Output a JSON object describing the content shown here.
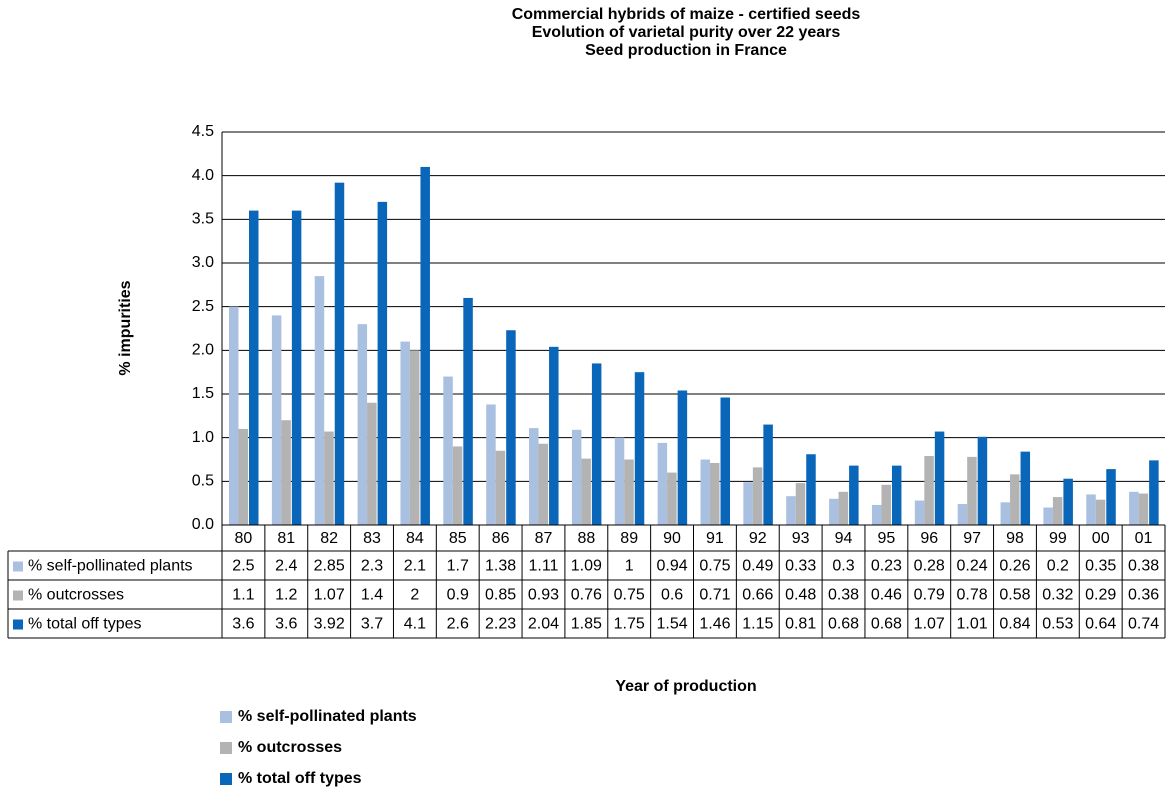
{
  "chart_data": {
    "type": "bar",
    "title": "Commercial hybrids of maize -  certified seeds",
    "subtitle": [
      "Evolution of varietal purity over 22 years",
      "Seed production in France"
    ],
    "y_label": "% impurities",
    "x_label": "Year of production",
    "categories": [
      "80",
      "81",
      "82",
      "83",
      "84",
      "85",
      "86",
      "87",
      "88",
      "89",
      "90",
      "91",
      "92",
      "93",
      "94",
      "95",
      "96",
      "97",
      "98",
      "99",
      "00",
      "01"
    ],
    "series": [
      {
        "name": "% self-pollinated plants",
        "color": "#a9c0e0",
        "values": [
          2.5,
          2.4,
          2.85,
          2.3,
          2.1,
          1.7,
          1.38,
          1.11,
          1.09,
          1,
          0.94,
          0.75,
          0.49,
          0.33,
          0.3,
          0.23,
          0.28,
          0.24,
          0.26,
          0.2,
          0.35,
          0.38
        ]
      },
      {
        "name": "% outcrosses",
        "color": "#b3b3b3",
        "values": [
          1.1,
          1.2,
          1.07,
          1.4,
          2,
          0.9,
          0.85,
          0.93,
          0.76,
          0.75,
          0.6,
          0.71,
          0.66,
          0.48,
          0.38,
          0.46,
          0.79,
          0.78,
          0.58,
          0.32,
          0.29,
          0.36
        ]
      },
      {
        "name": "% total off types",
        "color": "#0a66b8",
        "values": [
          3.6,
          3.6,
          3.92,
          3.7,
          4.1,
          2.6,
          2.23,
          2.04,
          1.85,
          1.75,
          1.54,
          1.46,
          1.15,
          0.81,
          0.68,
          0.68,
          1.07,
          1.01,
          0.84,
          0.53,
          0.64,
          0.74
        ]
      }
    ],
    "ylim": [
      0,
      4.5
    ],
    "yticks": [
      {
        "value": 0,
        "label": "0.0"
      },
      0.5,
      {
        "value": 1,
        "label": "1.0"
      },
      1.5,
      {
        "value": 2,
        "label": "2.0"
      },
      2.5,
      {
        "value": 3,
        "label": "3.0"
      },
      3.5,
      {
        "value": 4,
        "label": "4.0"
      },
      4.5
    ],
    "grid": true,
    "data_table": true,
    "legend": "bottom-left"
  }
}
